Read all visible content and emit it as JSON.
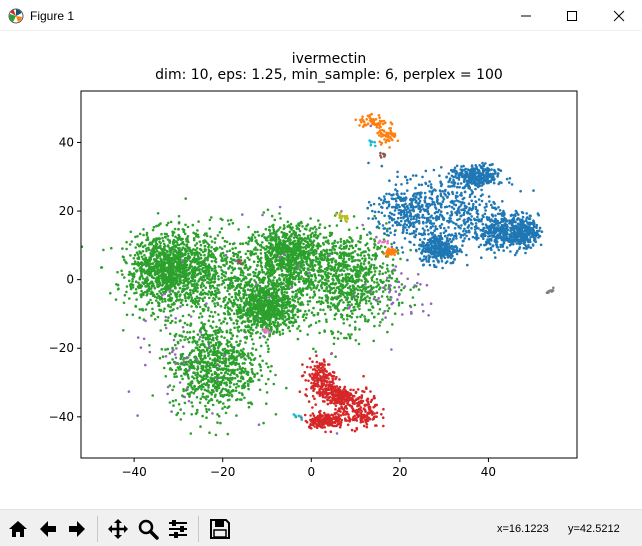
{
  "window": {
    "title": "Figure 1"
  },
  "toolbar": {
    "buttons": [
      {
        "name": "home",
        "icon": "home-icon"
      },
      {
        "name": "back",
        "icon": "arrow-left-icon"
      },
      {
        "name": "forward",
        "icon": "arrow-right-icon"
      },
      {
        "name": "pan",
        "icon": "move-icon"
      },
      {
        "name": "zoom",
        "icon": "magnifier-icon"
      },
      {
        "name": "configure",
        "icon": "sliders-icon"
      },
      {
        "name": "save",
        "icon": "floppy-disk-icon"
      }
    ],
    "x_readout": "x=16.1223",
    "y_readout": "y=42.5212"
  },
  "chart_data": {
    "type": "scatter",
    "title": "ivermectin",
    "subtitle": "dim: 10, eps: 1.25, min_sample: 6, perplex = 100",
    "xlabel": "",
    "ylabel": "",
    "xlim": [
      -52,
      60
    ],
    "ylim": [
      -52,
      55
    ],
    "xticks": [
      -40,
      -20,
      0,
      20,
      40
    ],
    "yticks": [
      -40,
      -20,
      0,
      20,
      40
    ],
    "xtick_labels": [
      "−40",
      "−20",
      "0",
      "20",
      "40"
    ],
    "ytick_labels": [
      "−40",
      "−20",
      "0",
      "20",
      "40"
    ],
    "grid": false,
    "legend": "none",
    "series": [
      {
        "color": "#2ca02c",
        "count": 5200,
        "regions": [
          [
            -25,
            2,
            14,
            12
          ],
          [
            8,
            0,
            10,
            13
          ],
          [
            -22,
            -25,
            9,
            12
          ],
          [
            -33,
            3,
            7,
            9
          ],
          [
            -5,
            7,
            7,
            8
          ],
          [
            -10,
            -8,
            7,
            7
          ]
        ]
      },
      {
        "color": "#1f77b4",
        "count": 1900,
        "regions": [
          [
            32,
            20,
            10,
            9
          ],
          [
            22,
            20,
            7,
            8
          ],
          [
            42,
            14,
            5,
            5
          ],
          [
            48,
            14,
            3,
            4
          ],
          [
            37,
            30,
            5,
            3
          ],
          [
            29,
            9,
            4,
            4
          ]
        ]
      },
      {
        "color": "#d62728",
        "count": 750,
        "regions": [
          [
            2,
            -29,
            3,
            5
          ],
          [
            6,
            -34,
            3,
            3
          ],
          [
            11,
            -38,
            4,
            5
          ],
          [
            3,
            -41,
            4,
            2
          ]
        ]
      },
      {
        "color": "#ff7f0e",
        "count": 150,
        "regions": [
          [
            14,
            46,
            3,
            2
          ],
          [
            17,
            42,
            2,
            2
          ],
          [
            18,
            8,
            1,
            1
          ]
        ]
      },
      {
        "color": "#9467bd",
        "count": 110,
        "regions": [
          [
            0,
            0,
            30,
            30
          ],
          [
            -30,
            -25,
            10,
            15
          ],
          [
            20,
            -5,
            8,
            8
          ]
        ]
      },
      {
        "color": "#bcbd22",
        "count": 18,
        "regions": [
          [
            7,
            18,
            2,
            1
          ]
        ]
      },
      {
        "color": "#8c564b",
        "count": 14,
        "regions": [
          [
            16,
            36,
            1,
            1
          ],
          [
            -16,
            5,
            1,
            1
          ]
        ]
      },
      {
        "color": "#e377c2",
        "count": 16,
        "regions": [
          [
            16,
            11,
            1,
            1
          ],
          [
            -10,
            -15,
            1,
            1
          ]
        ]
      },
      {
        "color": "#17becf",
        "count": 14,
        "regions": [
          [
            -3,
            -40,
            1,
            1
          ],
          [
            14,
            40,
            1,
            1
          ]
        ]
      },
      {
        "color": "#7f7f7f",
        "count": 10,
        "regions": [
          [
            54,
            -3,
            1,
            1
          ]
        ]
      }
    ]
  }
}
